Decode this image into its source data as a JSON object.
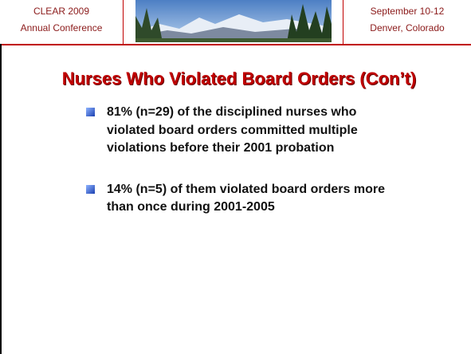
{
  "header": {
    "left": [
      "CLEAR 2009",
      "Annual Conference"
    ],
    "right": [
      "September 10-12",
      "Denver, Colorado"
    ]
  },
  "title": "Nurses Who Violated Board Orders (Con’t)",
  "bullets": [
    "81% (n=29) of the disciplined nurses who violated board orders committed multiple violations before their 2001 probation",
    "14% (n=5) of them violated board orders more than once during 2001-2005"
  ]
}
